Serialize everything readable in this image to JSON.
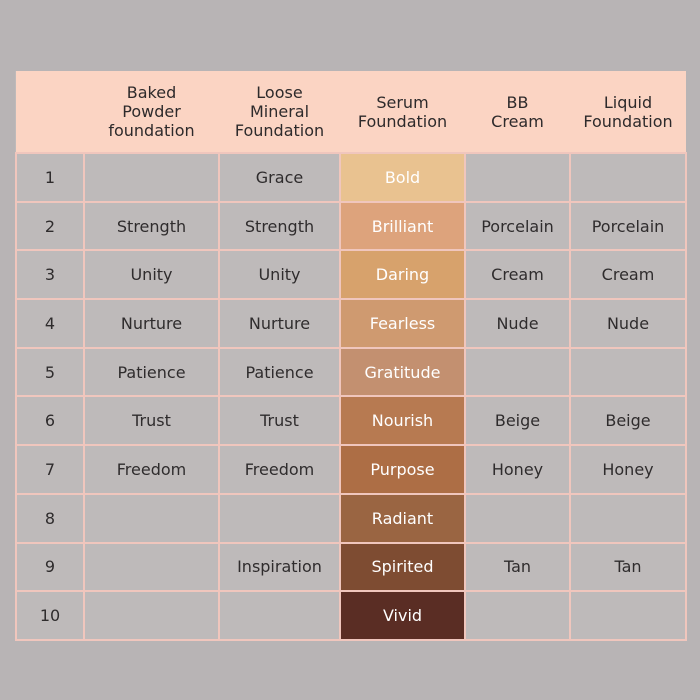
{
  "table": {
    "headers": [
      "",
      "Baked\nPowder\nfoundation",
      "Loose\nMineral\nFoundation",
      "Serum\nFoundation",
      "BB\nCream",
      "Liquid\nFoundation"
    ],
    "rows": [
      {
        "num": "1",
        "baked": "",
        "loose": "Grace",
        "serum": "Bold",
        "serum_color": "#e9c290",
        "bb": "",
        "liquid": ""
      },
      {
        "num": "2",
        "baked": "Strength",
        "loose": "Strength",
        "serum": "Brilliant",
        "serum_color": "#dda37c",
        "bb": "Porcelain",
        "liquid": "Porcelain"
      },
      {
        "num": "3",
        "baked": "Unity",
        "loose": "Unity",
        "serum": "Daring",
        "serum_color": "#d7a26c",
        "bb": "Cream",
        "liquid": "Cream"
      },
      {
        "num": "4",
        "baked": "Nurture",
        "loose": "Nurture",
        "serum": "Fearless",
        "serum_color": "#cf9a70",
        "bb": "Nude",
        "liquid": "Nude"
      },
      {
        "num": "5",
        "baked": "Patience",
        "loose": "Patience",
        "serum": "Gratitude",
        "serum_color": "#c39070",
        "bb": "",
        "liquid": ""
      },
      {
        "num": "6",
        "baked": "Trust",
        "loose": "Trust",
        "serum": "Nourish",
        "serum_color": "#b77a51",
        "bb": "Beige",
        "liquid": "Beige"
      },
      {
        "num": "7",
        "baked": "Freedom",
        "loose": "Freedom",
        "serum": "Purpose",
        "serum_color": "#ad6e45",
        "bb": "Honey",
        "liquid": "Honey"
      },
      {
        "num": "8",
        "baked": "",
        "loose": "",
        "serum": "Radiant",
        "serum_color": "#9a6542",
        "bb": "",
        "liquid": ""
      },
      {
        "num": "9",
        "baked": "",
        "loose": "Inspiration",
        "serum": "Spirited",
        "serum_color": "#7e4c32",
        "bb": "Tan",
        "liquid": "Tan"
      },
      {
        "num": "10",
        "baked": "",
        "loose": "",
        "serum": "Vivid",
        "serum_color": "#5a2d24",
        "bb": "",
        "liquid": ""
      }
    ]
  }
}
